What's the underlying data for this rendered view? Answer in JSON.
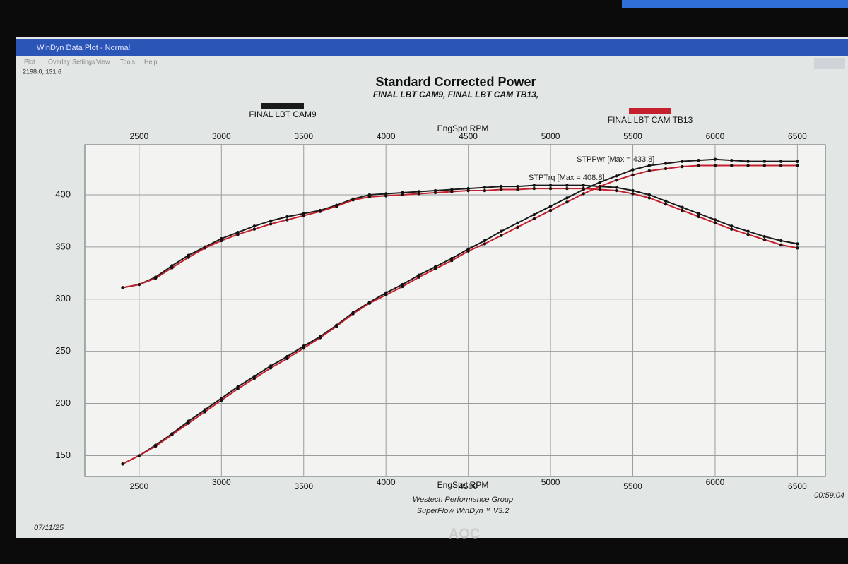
{
  "window": {
    "title": "WinDyn Data Plot - Normal",
    "menu": [
      "Plot",
      "Overlay",
      "Settings",
      "View",
      "Tools",
      "Help"
    ],
    "status": "2198.0, 131.6",
    "date": "07/11/25",
    "time": "00:59:04",
    "credit1": "Westech Performance Group",
    "credit2": "SuperFlow WinDyn™ V3.2",
    "brand": "AOC"
  },
  "chart_data": {
    "type": "line",
    "title": "Standard Corrected Power",
    "subtitle": "FINAL LBT CAM9, FINAL LBT CAM TB13,",
    "x_label": "EngSpd RPM",
    "annotations": [
      "STPPwr [Max = 433.8]",
      "STPTrq [Max = 408.8]"
    ],
    "x": [
      2400,
      2500,
      2600,
      2700,
      2800,
      2900,
      3000,
      3100,
      3200,
      3300,
      3400,
      3500,
      3600,
      3700,
      3800,
      3900,
      4000,
      4100,
      4200,
      4300,
      4400,
      4500,
      4600,
      4700,
      4800,
      4900,
      5000,
      5100,
      5200,
      5300,
      5400,
      5500,
      5600,
      5700,
      5800,
      5900,
      6000,
      6100,
      6200,
      6300,
      6400,
      6500
    ],
    "series": [
      {
        "name": "FINAL LBT CAM9",
        "color": "#1a1a1a",
        "torque": [
          311,
          314,
          321,
          332,
          342,
          350,
          358,
          364,
          370,
          375,
          379,
          382,
          385,
          390,
          396,
          400,
          401,
          402,
          403,
          404,
          405,
          406,
          407,
          408,
          408,
          409,
          409,
          409,
          409,
          408,
          407,
          404,
          400,
          394,
          388,
          382,
          376,
          370,
          365,
          360,
          356,
          353
        ],
        "power": [
          142,
          150,
          160,
          171,
          183,
          194,
          205,
          216,
          226,
          236,
          245,
          255,
          264,
          275,
          287,
          297,
          306,
          314,
          323,
          331,
          339,
          348,
          356,
          365,
          373,
          381,
          389,
          397,
          405,
          412,
          418,
          424,
          428,
          430,
          432,
          433,
          434,
          433,
          432,
          432,
          432,
          432
        ]
      },
      {
        "name": "FINAL LBT CAM TB13",
        "color": "#c4202e",
        "torque": [
          311,
          314,
          320,
          330,
          340,
          349,
          356,
          362,
          367,
          372,
          376,
          380,
          384,
          389,
          395,
          398,
          399,
          400,
          401,
          402,
          403,
          404,
          404,
          405,
          405,
          406,
          406,
          406,
          406,
          405,
          404,
          401,
          397,
          391,
          385,
          379,
          373,
          367,
          362,
          357,
          352,
          349
        ],
        "power": [
          142,
          150,
          159,
          170,
          181,
          192,
          203,
          214,
          224,
          234,
          243,
          253,
          263,
          274,
          286,
          296,
          304,
          312,
          321,
          329,
          337,
          346,
          353,
          361,
          369,
          377,
          385,
          393,
          401,
          408,
          414,
          419,
          423,
          425,
          427,
          428,
          428,
          428,
          428,
          428,
          428,
          428
        ]
      }
    ],
    "xlim": [
      2170,
      6670
    ],
    "xticks": [
      2500,
      3000,
      3500,
      4000,
      4500,
      5000,
      5500,
      6000,
      6500
    ],
    "ylim": [
      130,
      448
    ],
    "yticks": [
      150,
      200,
      250,
      300,
      350,
      400
    ],
    "grid": true
  }
}
